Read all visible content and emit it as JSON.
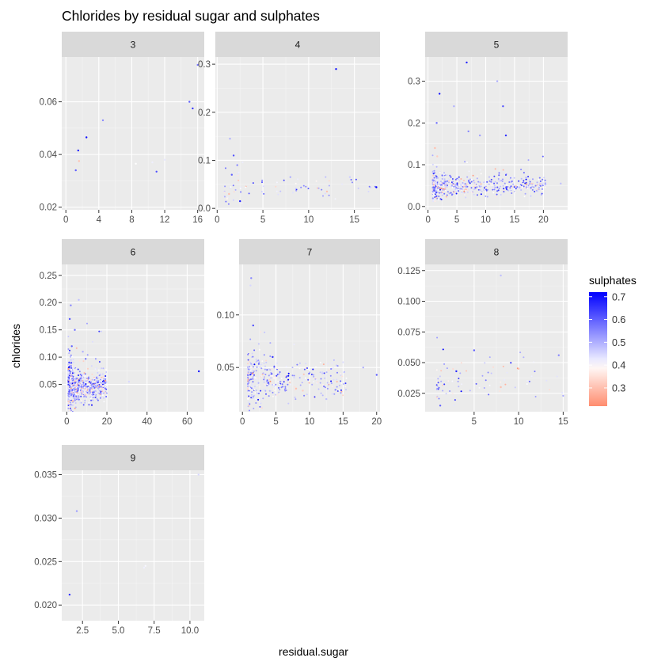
{
  "chart_data": {
    "type": "scatter",
    "title": "Chlorides by residual sugar and sulphates",
    "xlabel": "residual.sugar",
    "ylabel": "chlorides",
    "facet_by": "quality",
    "grid": true,
    "legend": {
      "title": "sulphates",
      "position": "right",
      "ticks": [
        0.3,
        0.4,
        0.5,
        0.6,
        0.7
      ],
      "range": [
        0.22,
        0.72
      ],
      "low_color": "#ff8c6e",
      "mid_color": "#ffffff",
      "high_color": "#0000ff",
      "midpoint": 0.4
    },
    "panels": [
      {
        "label": "3",
        "xlim": [
          -0.5,
          16.8
        ],
        "ylim": [
          0.019,
          0.077
        ],
        "xticks": [
          0,
          4,
          8,
          12,
          16
        ],
        "xticklabels": [
          "0",
          "4",
          "8",
          "12",
          "16"
        ],
        "yticks": [
          0.02,
          0.04,
          0.06
        ],
        "yticklabels": [
          "0.02",
          "0.04",
          "0.06"
        ],
        "points": [
          [
            1.2,
            0.034,
            0.6
          ],
          [
            1.5,
            0.0415,
            0.68
          ],
          [
            1.6,
            0.0375,
            0.3
          ],
          [
            2.5,
            0.0465,
            0.7
          ],
          [
            4.5,
            0.053,
            0.55
          ],
          [
            10.5,
            0.037,
            0.42
          ],
          [
            11.0,
            0.0335,
            0.62
          ],
          [
            12.0,
            0.038,
            0.43
          ],
          [
            15.0,
            0.06,
            0.6
          ],
          [
            15.4,
            0.0575,
            0.66
          ],
          [
            16.0,
            0.074,
            0.57
          ],
          [
            8.5,
            0.0365,
            0.4
          ]
        ]
      },
      {
        "label": "4",
        "xlim": [
          -0.2,
          17.8
        ],
        "ylim": [
          -0.003,
          0.315
        ],
        "xticks": [
          0,
          5,
          10,
          15
        ],
        "xticklabels": [
          "0",
          "5",
          "10",
          "15"
        ],
        "yticks": [
          0.0,
          0.1,
          0.2,
          0.3
        ],
        "yticklabels": [
          "0.0",
          "0.1",
          "0.2",
          "0.3"
        ],
        "points": [
          [
            13.0,
            0.29,
            0.7
          ],
          [
            1.4,
            0.145,
            0.5
          ],
          [
            1.8,
            0.11,
            0.62
          ],
          [
            2.2,
            0.09,
            0.55
          ],
          [
            17.4,
            0.044,
            0.72
          ],
          [
            1.6,
            0.07,
            0.6
          ],
          [
            1.3,
            0.03,
            0.3
          ],
          [
            1.1,
            0.02,
            0.38
          ],
          [
            2.5,
            0.015,
            0.68
          ],
          [
            8.0,
            0.065,
            0.5
          ],
          [
            14.5,
            0.065,
            0.46
          ],
          [
            12.0,
            0.035,
            0.3
          ]
        ]
      },
      {
        "label": "5",
        "xlim": [
          -0.5,
          24.2
        ],
        "ylim": [
          -0.008,
          0.358
        ],
        "xticks": [
          0,
          5,
          10,
          15,
          20
        ],
        "xticklabels": [
          "0",
          "5",
          "10",
          "15",
          "20"
        ],
        "yticks": [
          0.0,
          0.1,
          0.2,
          0.3
        ],
        "yticklabels": [
          "0.0",
          "0.1",
          "0.2",
          "0.3"
        ],
        "points": [
          [
            6.7,
            0.345,
            0.68
          ],
          [
            12.0,
            0.3,
            0.5
          ],
          [
            2.0,
            0.27,
            0.7
          ],
          [
            4.5,
            0.24,
            0.5
          ],
          [
            13.0,
            0.24,
            0.62
          ],
          [
            1.5,
            0.2,
            0.58
          ],
          [
            7.0,
            0.18,
            0.55
          ],
          [
            9.0,
            0.17,
            0.52
          ],
          [
            13.5,
            0.17,
            0.66
          ],
          [
            1.2,
            0.14,
            0.3
          ],
          [
            1.6,
            0.12,
            0.32
          ],
          [
            23.0,
            0.055,
            0.48
          ]
        ]
      },
      {
        "label": "6",
        "xlim": [
          -2.5,
          68.5
        ],
        "ylim": [
          0.0,
          0.27
        ],
        "xticks": [
          0,
          20,
          40,
          60
        ],
        "xticklabels": [
          "0",
          "20",
          "40",
          "60"
        ],
        "yticks": [
          0.05,
          0.1,
          0.15,
          0.2,
          0.25
        ],
        "yticklabels": [
          "0.05",
          "0.10",
          "0.15",
          "0.20",
          "0.25"
        ],
        "points": [
          [
            65.8,
            0.074,
            0.7
          ],
          [
            2.0,
            0.195,
            0.55
          ],
          [
            6.0,
            0.205,
            0.48
          ],
          [
            1.5,
            0.17,
            0.62
          ],
          [
            4.0,
            0.15,
            0.58
          ],
          [
            2.5,
            0.12,
            0.6
          ],
          [
            8.0,
            0.11,
            0.5
          ],
          [
            1.2,
            0.09,
            0.64
          ],
          [
            31.0,
            0.055,
            0.45
          ],
          [
            18.0,
            0.04,
            0.36
          ],
          [
            3.0,
            0.02,
            0.3
          ],
          [
            12.0,
            0.025,
            0.4
          ]
        ]
      },
      {
        "label": "7",
        "xlim": [
          -0.5,
          20.5
        ],
        "ylim": [
          0.008,
          0.148
        ],
        "xticks": [
          0,
          5,
          10,
          15,
          20
        ],
        "xticklabels": [
          "0",
          "5",
          "10",
          "15",
          "20"
        ],
        "yticks": [
          0.05,
          0.1
        ],
        "yticklabels": [
          "0.05",
          "0.10"
        ],
        "points": [
          [
            1.3,
            0.135,
            0.55
          ],
          [
            1.2,
            0.128,
            0.45
          ],
          [
            1.6,
            0.09,
            0.62
          ],
          [
            18.0,
            0.05,
            0.5
          ],
          [
            20.0,
            0.043,
            0.6
          ],
          [
            15.0,
            0.055,
            0.44
          ],
          [
            8.0,
            0.03,
            0.3
          ],
          [
            9.0,
            0.028,
            0.32
          ],
          [
            12.5,
            0.02,
            0.48
          ],
          [
            4.5,
            0.06,
            0.66
          ]
        ]
      },
      {
        "label": "8",
        "xlim": [
          -0.5,
          15.5
        ],
        "ylim": [
          0.01,
          0.13
        ],
        "xticks": [
          5,
          10,
          15
        ],
        "xticklabels": [
          "5",
          "10",
          "15"
        ],
        "yticks": [
          0.025,
          0.05,
          0.075,
          0.1,
          0.125
        ],
        "yticklabels": [
          "0.025",
          "0.050",
          "0.075",
          "0.100",
          "0.125"
        ],
        "points": [
          [
            8.0,
            0.121,
            0.48
          ],
          [
            5.0,
            0.06,
            0.6
          ],
          [
            14.5,
            0.056,
            0.55
          ],
          [
            1.2,
            0.015,
            0.6
          ],
          [
            15.0,
            0.023,
            0.5
          ],
          [
            10.0,
            0.045,
            0.3
          ],
          [
            8.0,
            0.03,
            0.3
          ],
          [
            3.0,
            0.043,
            0.68
          ]
        ]
      },
      {
        "label": "9",
        "xlim": [
          1.05,
          11.0
        ],
        "ylim": [
          0.0182,
          0.0355
        ],
        "xticks": [
          2.5,
          5.0,
          7.5,
          10.0
        ],
        "xticklabels": [
          "2.5",
          "5.0",
          "7.5",
          "10.0"
        ],
        "yticks": [
          0.02,
          0.025,
          0.03,
          0.035
        ],
        "yticklabels": [
          "0.020",
          "0.025",
          "0.030",
          "0.035"
        ],
        "points": [
          [
            1.6,
            0.0212,
            0.66
          ],
          [
            2.1,
            0.0308,
            0.52
          ],
          [
            10.6,
            0.035,
            0.45
          ],
          [
            6.8,
            0.0243,
            0.42
          ],
          [
            6.9,
            0.0245,
            0.41
          ]
        ]
      }
    ]
  }
}
